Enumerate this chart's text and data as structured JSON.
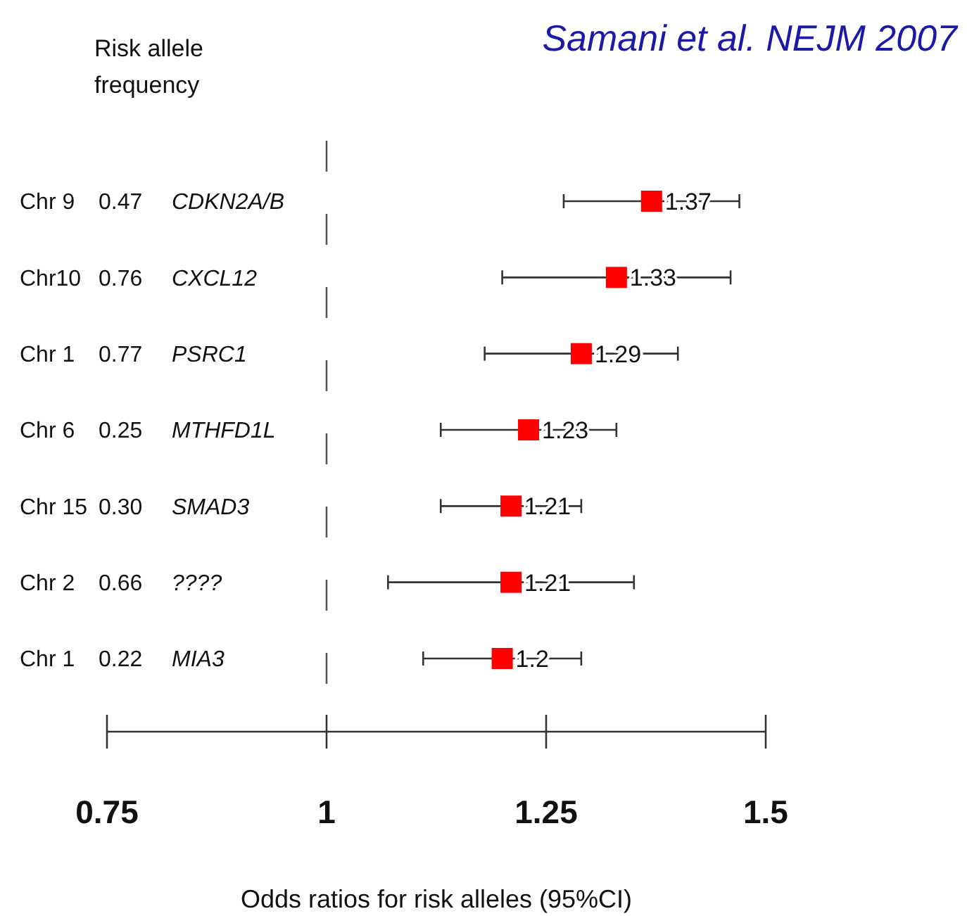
{
  "chart_data": {
    "type": "scatter",
    "title": "Samani et al. NEJM 2007",
    "xlabel": "Odds ratios for risk alleles (95%CI)",
    "annotations": [
      "Risk allele frequency"
    ],
    "orientation": "horizontal",
    "marker": "square",
    "color": "#ff0000",
    "data_labels": true,
    "categories": [
      "Chr 9  0.47  CDKN2A/B",
      "Chr10  0.76  CXCL12",
      "Chr 1  0.77  PSRC1",
      "Chr 6  0.25  MTHFD1L",
      "Chr 15  0.30  SMAD3",
      "Chr 2  0.66  ????",
      "Chr 1  0.22  MIA3"
    ],
    "values": [
      1.37,
      1.33,
      1.29,
      1.23,
      1.21,
      1.21,
      1.2
    ],
    "errors": [
      [
        1.27,
        1.47
      ],
      [
        1.2,
        1.46
      ],
      [
        1.18,
        1.4
      ],
      [
        1.13,
        1.33
      ],
      [
        1.13,
        1.29
      ],
      [
        1.07,
        1.35
      ],
      [
        1.11,
        1.29
      ]
    ],
    "xlim": [
      0.75,
      1.5
    ],
    "xticks": [
      0.75,
      1,
      1.25,
      1.5
    ],
    "ref_lines": [
      {
        "axis": "x",
        "value": 1,
        "line_style": "dashed",
        "color": "#555555"
      }
    ]
  }
}
